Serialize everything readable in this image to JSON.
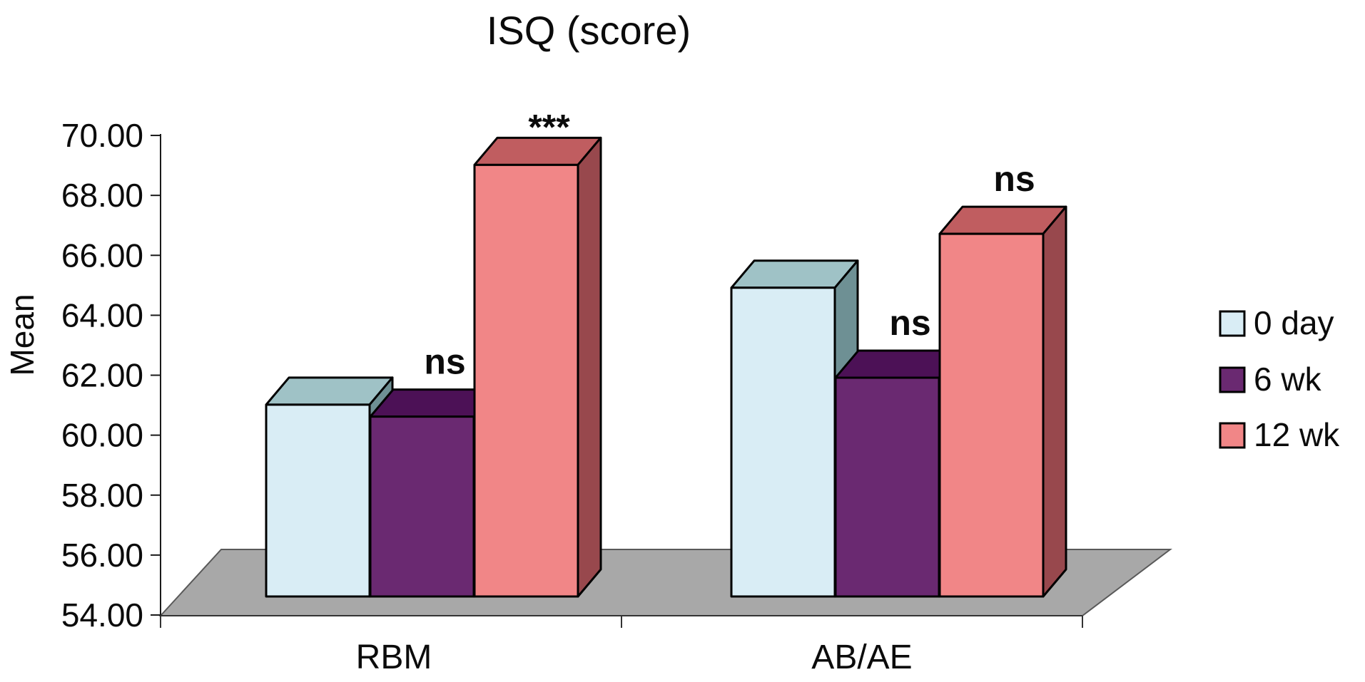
{
  "chart_data": {
    "type": "bar",
    "projection_style": "3d-columns",
    "title": "ISQ (score)",
    "ylabel": "Mean",
    "xlabel": "",
    "categories": [
      "RBM",
      "AB/AE"
    ],
    "series": [
      {
        "name": "0 day",
        "values": [
          60.4,
          64.3
        ],
        "color_front": "#d9edf5",
        "color_top": "#9fc2c6",
        "color_side": "#6e9094"
      },
      {
        "name": "6 wk",
        "values": [
          60.0,
          61.3
        ],
        "color_front": "#6a2971",
        "color_top": "#4c1156",
        "color_side": "#420c4e"
      },
      {
        "name": "12 wk",
        "values": [
          68.4,
          66.1
        ],
        "color_front": "#f18687",
        "color_top": "#c05d60",
        "color_side": "#98484d"
      }
    ],
    "annotations": [
      {
        "category_index": 0,
        "series_index": 1,
        "text": "ns"
      },
      {
        "category_index": 0,
        "series_index": 2,
        "text": "***"
      },
      {
        "category_index": 1,
        "series_index": 1,
        "text": "ns"
      },
      {
        "category_index": 1,
        "series_index": 2,
        "text": "ns"
      }
    ],
    "ylim": [
      54,
      70
    ],
    "ytick_step": 2,
    "ytick_labels": [
      "54.00",
      "56.00",
      "58.00",
      "60.00",
      "62.00",
      "64.00",
      "66.00",
      "68.00",
      "70.00"
    ],
    "legend_position": "right",
    "floor_color": "#a8a8a8",
    "grid": false
  }
}
